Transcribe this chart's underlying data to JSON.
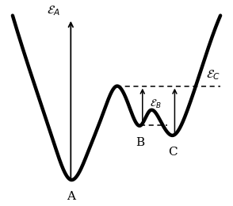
{
  "background_color": "#ffffff",
  "curve_color": "#000000",
  "curve_linewidth": 3.2,
  "axis_color": "#000000",
  "dashed_color": "#000000",
  "label_A": "A",
  "label_B": "B",
  "label_C": "C",
  "label_eA": "$\\mathcal{E}_A$",
  "label_eB": "$\\mathcal{E}_B$",
  "label_eC": "$\\mathcal{E}_C$",
  "figsize": [
    2.94,
    2.6
  ],
  "dpi": 100,
  "xlim": [
    -0.05,
    1.05
  ],
  "ylim": [
    -0.12,
    1.05
  ]
}
